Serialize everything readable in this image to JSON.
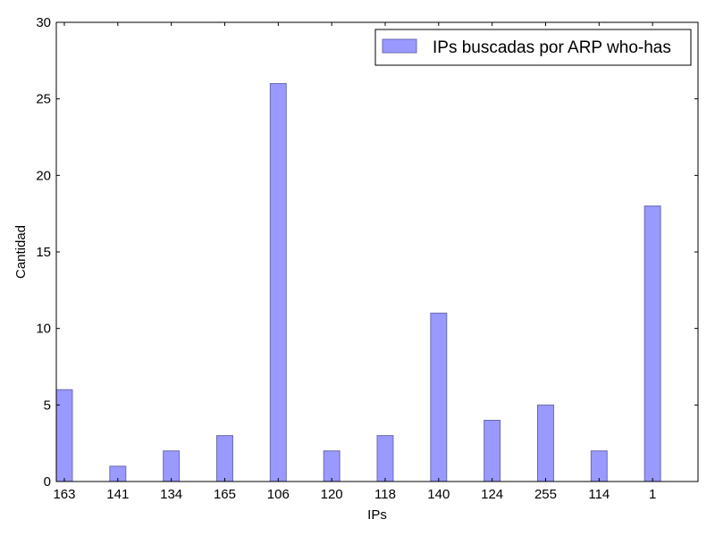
{
  "chart_data": {
    "type": "bar",
    "xlabel": "IPs",
    "ylabel": "Cantidad",
    "categories": [
      "163",
      "141",
      "134",
      "165",
      "106",
      "120",
      "118",
      "140",
      "124",
      "255",
      "114",
      "1"
    ],
    "series": [
      {
        "name": "IPs buscadas por ARP who-has",
        "values": [
          6,
          1,
          2,
          3,
          26,
          2,
          3,
          11,
          4,
          5,
          2,
          18
        ]
      }
    ],
    "ylim": [
      0,
      30
    ],
    "yticks": [
      0,
      5,
      10,
      15,
      20,
      25,
      30
    ],
    "grid": false,
    "legend_position": "top-right",
    "colors": {
      "bar_fill": "#9999ff",
      "bar_edge": "#6b6bb0",
      "axes": "#000000"
    }
  }
}
